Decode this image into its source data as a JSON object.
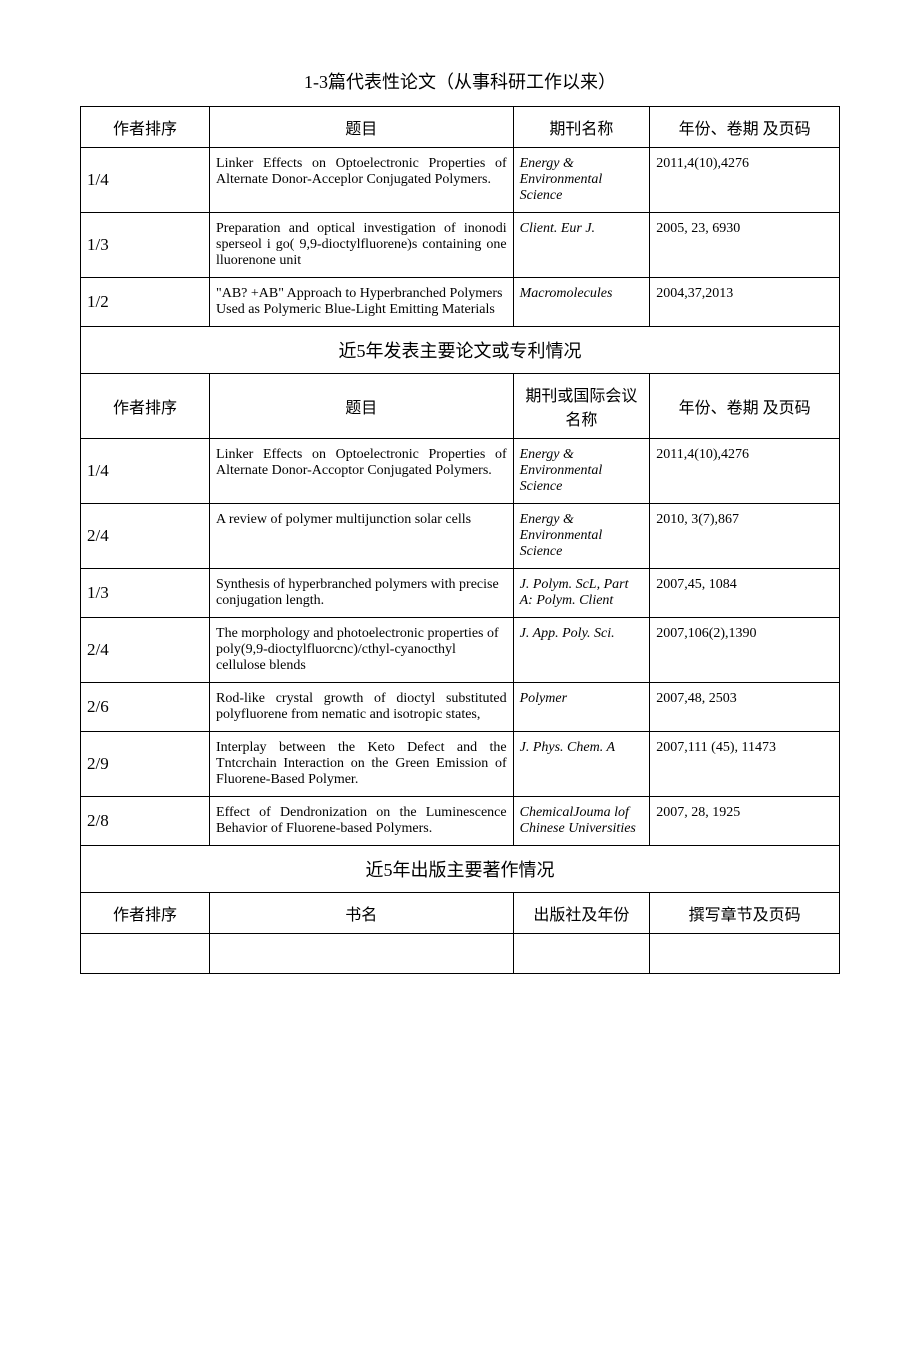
{
  "section1": {
    "title": "1-3篇代表性论文（从事科研工作以来）",
    "headers": {
      "order": "作者排序",
      "title": "题目",
      "journal": "期刊名称",
      "year": "年份、卷期 及页码"
    },
    "rows": [
      {
        "order": "1/4",
        "title": "Linker Effects on Optoelectronic Properties of Alternate Donor-Acceplor Conjugated Polymers.",
        "journal": "Energy & Environmental Science",
        "year": "2011,4(10),4276"
      },
      {
        "order": "1/3",
        "title": "Preparation and optical investigation of inonodi sperseol i go( 9,9-dioctylfluorene)s containing one lluorenone unit",
        "journal": "Client. Eur J.",
        "year": "2005, 23, 6930"
      },
      {
        "order": "1/2",
        "title": "\"AB? +AB\" Approach to Hyperbranched Polymers Used as Polymeric Blue-Light Emitting Materials",
        "journal": "Macromolecules",
        "year": "2004,37,2013"
      }
    ]
  },
  "section2": {
    "title": "近5年发表主要论文或专利情况",
    "headers": {
      "order": "作者排序",
      "title": "题目",
      "journal": "期刊或国际会议名称",
      "year": "年份、卷期 及页码"
    },
    "rows": [
      {
        "order": "1/4",
        "title": "Linker Effects on Optoelectronic Properties of Alternate Donor-Accoptor Conjugated Polymers.",
        "journal": "Energy & Environmental Science",
        "year": "2011,4(10),4276"
      },
      {
        "order": "2/4",
        "title": "A review of polymer multijunction solar cells",
        "journal": "Energy & Environmental Science",
        "year": "2010, 3(7),867"
      },
      {
        "order": "1/3",
        "title": "Synthesis of hyperbranched polymers with precise conjugation length.",
        "journal": "J. Polym. ScL, Part A: Polym. Client",
        "year": "2007,45, 1084"
      },
      {
        "order": "2/4",
        "title": "The morphology and photoelectronic properties of poly(9,9-dioctylfluorcnc)/cthyl-cyanocthyl cellulose blends",
        "journal": "J. App. Poly. Sci.",
        "year": "2007,106(2),1390"
      },
      {
        "order": "2/6",
        "title": "Rod-like crystal growth of dioctyl substituted polyfluorene from nematic and isotropic states,",
        "journal": "Polymer",
        "year": "2007,48, 2503"
      },
      {
        "order": "2/9",
        "title": "Interplay between the Keto Defect and the Tntcrchain Interaction on the Green Emission of Fluorene-Based Polymer.",
        "journal": "J. Phys. Chem. A",
        "year": "2007,111 (45), 11473"
      },
      {
        "order": "2/8",
        "title": "Effect of Dendronization on the Luminescence Behavior of Fluorene-based Polymers.",
        "journal": "ChemicalJouma lof Chinese Universities",
        "year": "2007, 28, 1925"
      }
    ]
  },
  "section3": {
    "title": "近5年出版主要著作情况",
    "headers": {
      "order": "作者排序",
      "title": "书名",
      "publisher": "出版社及年份",
      "pages": "撰写章节及页码"
    }
  }
}
